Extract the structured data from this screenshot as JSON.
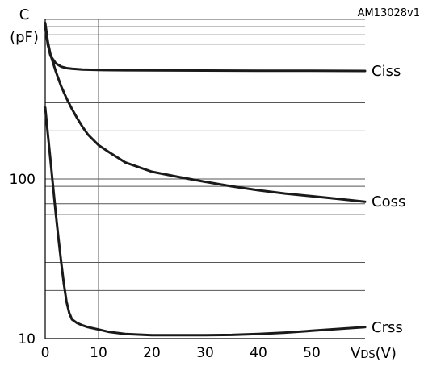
{
  "chart_data": {
    "type": "line",
    "reference": "AM13028v1",
    "ylabel_top": "C",
    "ylabel_unit": "(pF)",
    "xlabel_main": "V",
    "xlabel_sub": "DS",
    "xlabel_unit": "(V)",
    "x_scale": "linear",
    "y_scale": "log",
    "xlim": [
      0,
      60
    ],
    "ylim": [
      10,
      1000
    ],
    "x_ticks": [
      "0",
      "10",
      "20",
      "30",
      "40",
      "50"
    ],
    "x_tick_values": [
      0,
      10,
      20,
      30,
      40,
      50
    ],
    "y_ticks": [
      "10",
      "100"
    ],
    "y_tick_values": [
      10,
      100
    ],
    "grid_y": [
      20,
      30,
      60,
      70,
      90,
      200,
      300,
      700,
      800,
      900
    ],
    "grid_x": [
      10
    ],
    "series": [
      {
        "name": "Ciss",
        "x": [
          0,
          0.5,
          1,
          2,
          3,
          4,
          5,
          7,
          10,
          15,
          20,
          30,
          40,
          50,
          60
        ],
        "y": [
          900,
          690,
          590,
          530,
          505,
          495,
          490,
          485,
          482,
          480,
          479,
          478,
          477,
          476,
          475
        ]
      },
      {
        "name": "Coss",
        "x": [
          0,
          0.5,
          1,
          2,
          3,
          4,
          5,
          6,
          7,
          8,
          10,
          12,
          15,
          20,
          25,
          30,
          35,
          40,
          45,
          50,
          55,
          60
        ],
        "y": [
          950,
          720,
          600,
          470,
          380,
          320,
          275,
          240,
          212,
          190,
          163,
          147,
          127,
          111,
          103,
          96,
          90,
          85,
          81,
          78,
          75,
          72
        ]
      },
      {
        "name": "Crss",
        "x": [
          0,
          0.5,
          1,
          1.5,
          2,
          2.5,
          3,
          3.5,
          4,
          4.5,
          5,
          6,
          7,
          8,
          10,
          12,
          15,
          20,
          25,
          30,
          35,
          40,
          45,
          50,
          55,
          60
        ],
        "y": [
          280,
          190,
          130,
          88,
          60,
          42,
          30,
          22,
          17,
          14.5,
          13.2,
          12.5,
          12.1,
          11.8,
          11.4,
          11.0,
          10.7,
          10.5,
          10.5,
          10.5,
          10.55,
          10.7,
          10.9,
          11.2,
          11.5,
          11.8
        ]
      }
    ]
  }
}
